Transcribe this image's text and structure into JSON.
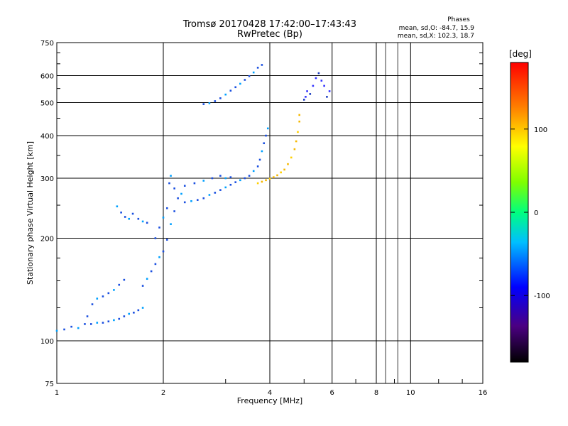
{
  "header": {
    "title_line1": "Tromsø 20170428 17:42:00–17:43:43",
    "title_line2": "RwPretec (Bp)",
    "phases_title": "Phases",
    "phases_o": "mean, sd,O: -84.7, 15.9",
    "phases_x": "mean, sd,X: 102.3, 18.7"
  },
  "colorbar": {
    "unit": "[deg]",
    "ticks": [
      "100",
      "0",
      "-100"
    ],
    "range": [
      -180,
      180
    ]
  },
  "chart_data": {
    "type": "scatter",
    "title": "Tromsø 20170428 17:42:00–17:43:43",
    "subtitle": "RwPretec (Bp)",
    "xlabel": "Frequency [MHz]",
    "ylabel": "Stationary phase Virtual Height [km]",
    "xscale": "log",
    "yscale": "log",
    "xlim": [
      1,
      16
    ],
    "ylim": [
      75,
      750
    ],
    "xticks": [
      1,
      2,
      4,
      6,
      8,
      10,
      16
    ],
    "xtick_labels": [
      "1",
      "2",
      "4",
      "6",
      "8",
      "10",
      "16"
    ],
    "yticks": [
      75,
      100,
      200,
      300,
      400,
      500,
      600,
      750
    ],
    "ytick_labels": [
      "75",
      "100",
      "200",
      "300",
      "400",
      "500",
      "600",
      "750"
    ],
    "grid": true,
    "series": [
      {
        "values": [
          [
            1.0,
            107
          ],
          [
            1.05,
            108
          ],
          [
            1.1,
            110
          ],
          [
            1.15,
            109
          ],
          [
            1.2,
            112
          ],
          [
            1.25,
            112
          ],
          [
            1.3,
            113
          ],
          [
            1.35,
            113
          ],
          [
            1.4,
            114
          ],
          [
            1.45,
            115
          ],
          [
            1.5,
            116
          ],
          [
            1.55,
            118
          ],
          [
            1.6,
            120
          ],
          [
            1.65,
            121
          ],
          [
            1.7,
            123
          ],
          [
            1.75,
            125
          ],
          [
            1.22,
            118
          ],
          [
            1.26,
            128
          ],
          [
            1.3,
            133
          ],
          [
            1.35,
            135
          ],
          [
            1.4,
            138
          ],
          [
            1.45,
            141
          ],
          [
            1.5,
            146
          ],
          [
            1.55,
            151
          ],
          [
            1.48,
            248
          ],
          [
            1.52,
            238
          ],
          [
            1.56,
            231
          ],
          [
            1.6,
            228
          ],
          [
            1.64,
            236
          ],
          [
            1.7,
            228
          ],
          [
            1.75,
            224
          ],
          [
            1.8,
            222
          ],
          [
            1.75,
            145
          ],
          [
            1.8,
            152
          ],
          [
            1.85,
            160
          ],
          [
            1.9,
            168
          ],
          [
            1.95,
            176
          ],
          [
            2.0,
            183
          ],
          [
            2.05,
            198
          ],
          [
            2.1,
            220
          ],
          [
            2.15,
            240
          ],
          [
            2.2,
            262
          ],
          [
            2.25,
            270
          ],
          [
            1.9,
            200
          ],
          [
            1.95,
            215
          ],
          [
            2.0,
            230
          ],
          [
            2.05,
            245
          ],
          [
            2.08,
            290
          ],
          [
            2.1,
            305
          ],
          [
            2.15,
            280
          ],
          [
            2.3,
            255
          ],
          [
            2.4,
            257
          ],
          [
            2.5,
            259
          ],
          [
            2.6,
            262
          ],
          [
            2.7,
            268
          ],
          [
            2.8,
            272
          ],
          [
            2.9,
            277
          ],
          [
            3.0,
            282
          ],
          [
            3.1,
            287
          ],
          [
            3.2,
            292
          ],
          [
            3.3,
            296
          ],
          [
            3.4,
            300
          ],
          [
            3.5,
            305
          ],
          [
            3.6,
            315
          ],
          [
            3.7,
            325
          ],
          [
            3.75,
            340
          ],
          [
            3.8,
            360
          ],
          [
            3.85,
            380
          ],
          [
            3.9,
            400
          ],
          [
            3.95,
            420
          ],
          [
            2.3,
            285
          ],
          [
            2.45,
            290
          ],
          [
            2.6,
            295
          ],
          [
            2.75,
            300
          ],
          [
            2.9,
            305
          ],
          [
            3.0,
            300
          ],
          [
            3.1,
            302
          ],
          [
            2.6,
            495
          ],
          [
            2.7,
            498
          ],
          [
            2.8,
            505
          ],
          [
            2.9,
            515
          ],
          [
            3.0,
            528
          ],
          [
            3.1,
            542
          ],
          [
            3.2,
            555
          ],
          [
            3.3,
            568
          ],
          [
            3.4,
            583
          ],
          [
            3.5,
            598
          ],
          [
            3.6,
            613
          ],
          [
            3.7,
            633
          ],
          [
            3.8,
            645
          ]
        ]
      },
      {
        "values": [
          [
            3.7,
            290
          ],
          [
            3.8,
            293
          ],
          [
            3.9,
            296
          ],
          [
            4.0,
            299
          ],
          [
            4.1,
            302
          ],
          [
            4.2,
            306
          ],
          [
            4.3,
            312
          ],
          [
            4.4,
            318
          ],
          [
            4.5,
            330
          ],
          [
            4.6,
            345
          ],
          [
            4.7,
            365
          ],
          [
            4.75,
            385
          ],
          [
            4.8,
            410
          ],
          [
            4.85,
            440
          ],
          [
            4.85,
            460
          ]
        ]
      },
      {
        "values": [
          [
            5.0,
            510
          ],
          [
            5.05,
            520
          ],
          [
            5.1,
            540
          ],
          [
            5.2,
            530
          ],
          [
            5.3,
            560
          ],
          [
            5.4,
            590
          ],
          [
            5.5,
            610
          ],
          [
            5.6,
            580
          ],
          [
            5.7,
            560
          ],
          [
            5.8,
            520
          ],
          [
            5.9,
            540
          ]
        ]
      }
    ],
    "colorbar_label": "[deg]",
    "colorbar_ticks": [
      100,
      0,
      -100
    ]
  }
}
